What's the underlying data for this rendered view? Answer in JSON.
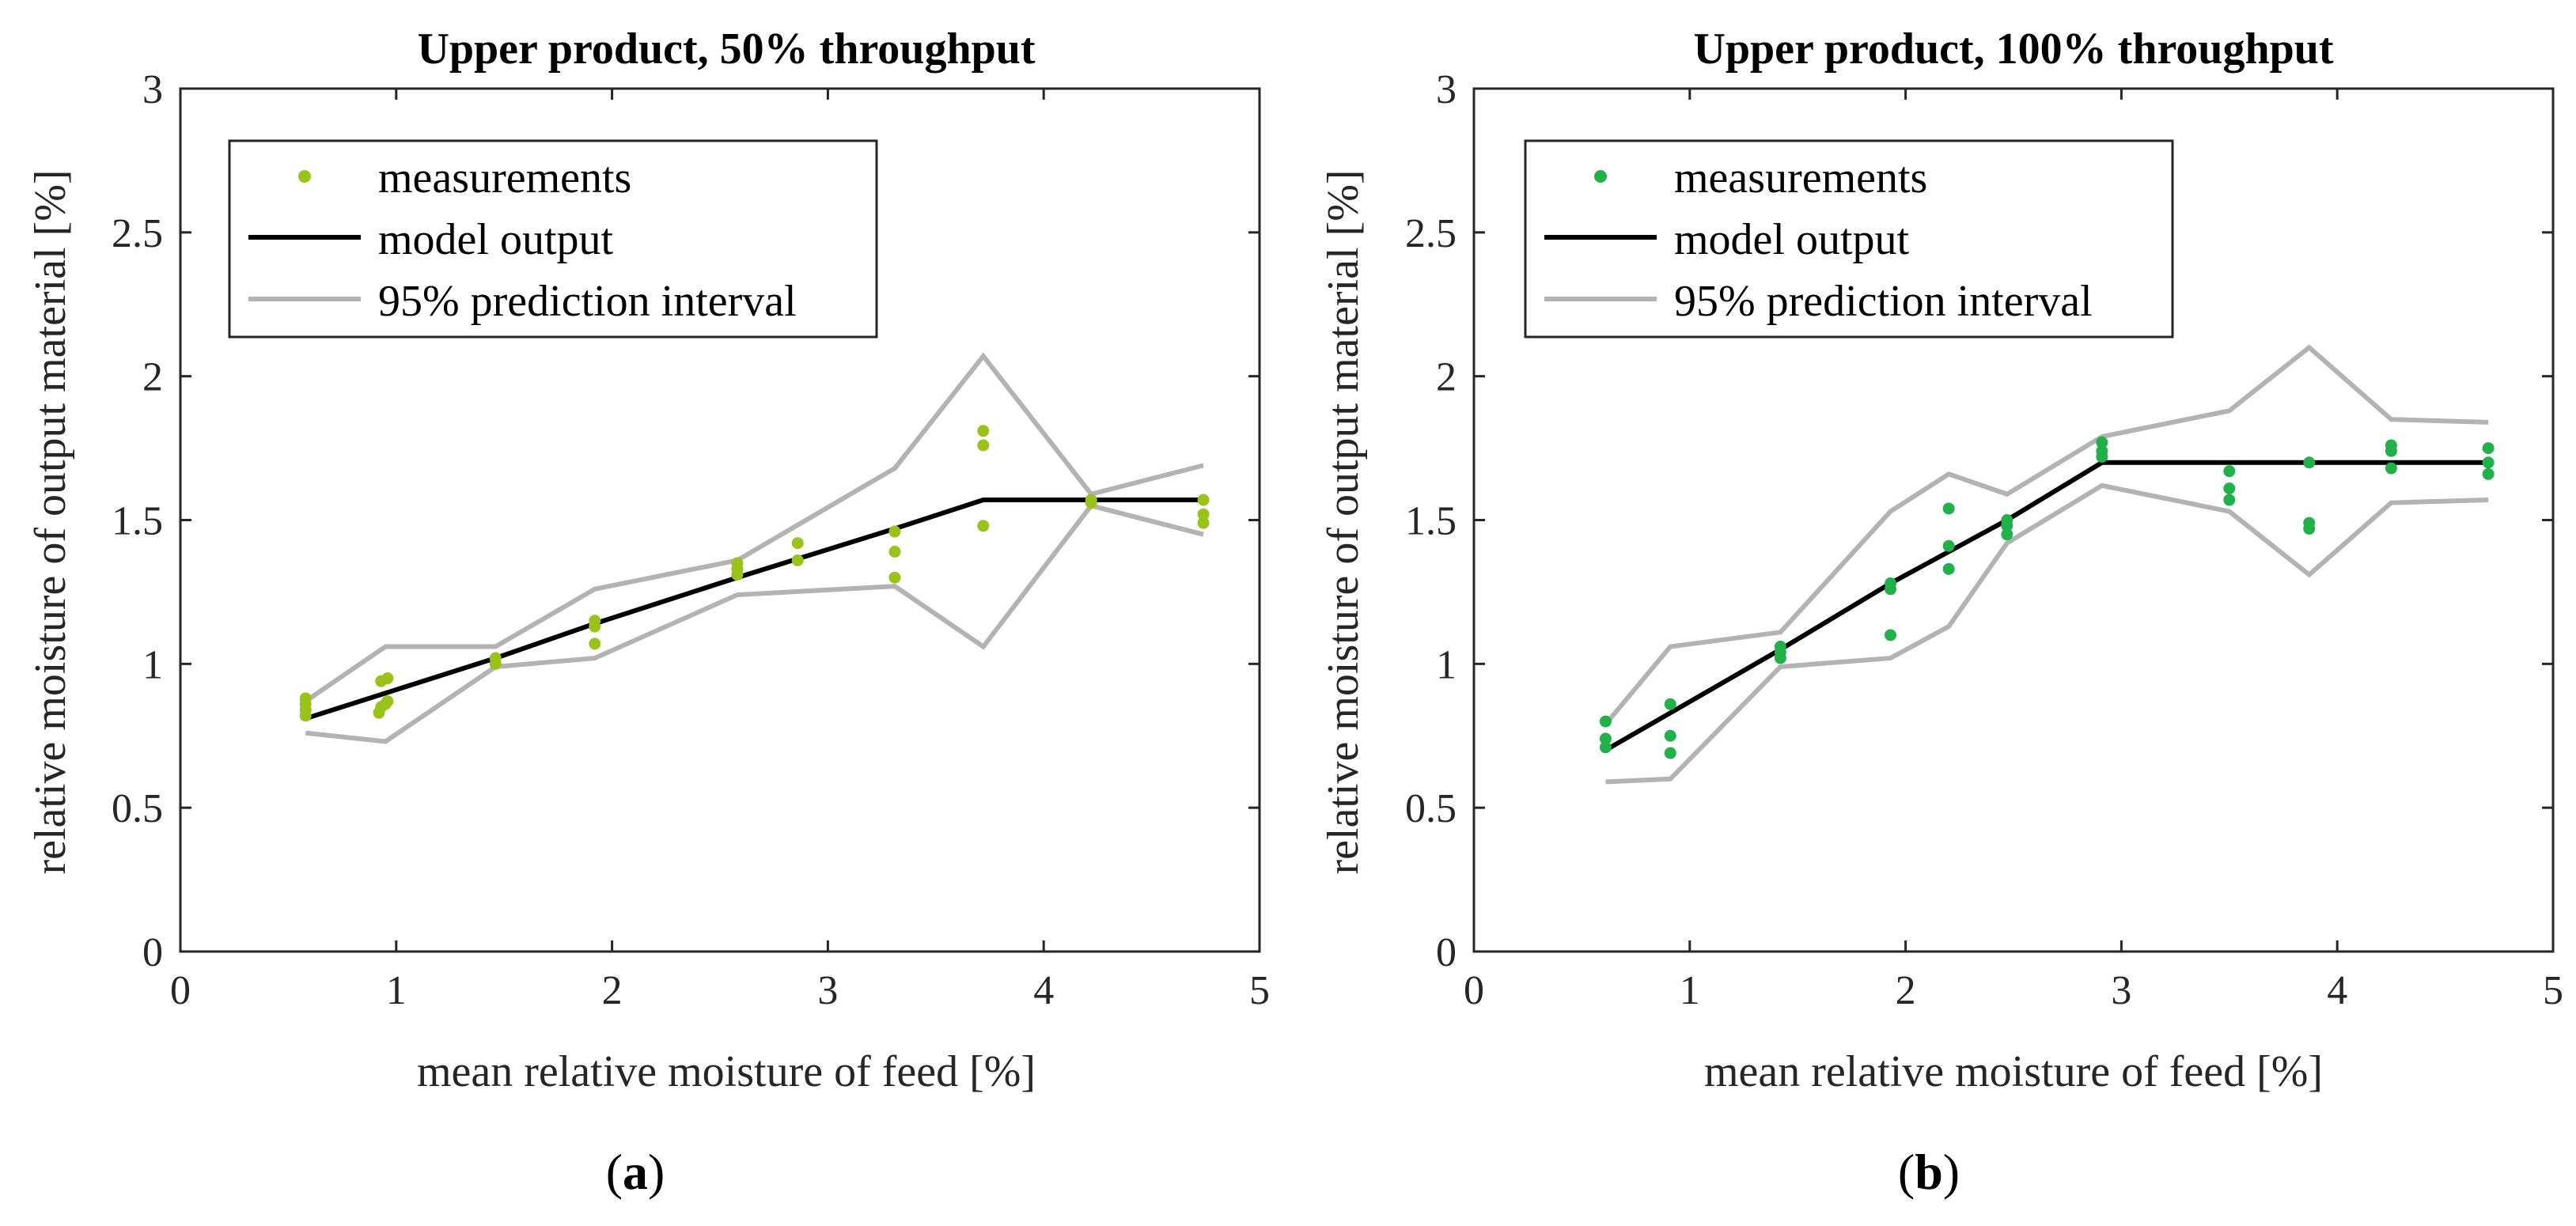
{
  "chart_data": [
    {
      "type": "line",
      "panel_label": "a",
      "title": "Upper product, 50% throughput",
      "xlabel": "mean relative moisture of feed [%]",
      "ylabel": "relative moisture of output material [%]",
      "xlim": [
        0,
        5
      ],
      "ylim": [
        0,
        3
      ],
      "xticks": [
        0,
        1,
        2,
        3,
        4,
        5
      ],
      "yticks": [
        0,
        0.5,
        1,
        1.5,
        2,
        2.5,
        3
      ],
      "grid": false,
      "legend_position": "top-left",
      "marker_color": "#99c31a",
      "series": [
        {
          "name": "measurements",
          "kind": "scatter",
          "color": "#99c31a",
          "points": [
            [
              0.58,
              0.82
            ],
            [
              0.58,
              0.84
            ],
            [
              0.58,
              0.86
            ],
            [
              0.58,
              0.88
            ],
            [
              0.92,
              0.83
            ],
            [
              0.93,
              0.85
            ],
            [
              0.95,
              0.86
            ],
            [
              0.96,
              0.87
            ],
            [
              0.93,
              0.94
            ],
            [
              0.96,
              0.95
            ],
            [
              1.46,
              1.0
            ],
            [
              1.46,
              1.02
            ],
            [
              1.92,
              1.07
            ],
            [
              1.92,
              1.13
            ],
            [
              1.92,
              1.15
            ],
            [
              2.58,
              1.31
            ],
            [
              2.58,
              1.33
            ],
            [
              2.58,
              1.35
            ],
            [
              2.86,
              1.36
            ],
            [
              2.86,
              1.42
            ],
            [
              3.31,
              1.3
            ],
            [
              3.31,
              1.39
            ],
            [
              3.31,
              1.46
            ],
            [
              3.72,
              1.48
            ],
            [
              3.72,
              1.76
            ],
            [
              3.72,
              1.81
            ],
            [
              4.22,
              1.56
            ],
            [
              4.22,
              1.57
            ],
            [
              4.74,
              1.49
            ],
            [
              4.74,
              1.52
            ],
            [
              4.74,
              1.57
            ]
          ]
        },
        {
          "name": "model output",
          "kind": "line",
          "color": "#000000",
          "points": [
            [
              0.58,
              0.81
            ],
            [
              1.46,
              1.02
            ],
            [
              1.92,
              1.14
            ],
            [
              2.58,
              1.3
            ],
            [
              3.31,
              1.47
            ],
            [
              3.72,
              1.57
            ],
            [
              4.22,
              1.57
            ],
            [
              4.74,
              1.57
            ]
          ]
        },
        {
          "name": "95% prediction interval",
          "kind": "line",
          "color": "#b3b3b3",
          "points": [
            [
              0.58,
              0.87
            ],
            [
              0.95,
              1.06
            ],
            [
              1.46,
              1.06
            ],
            [
              1.92,
              1.26
            ],
            [
              2.58,
              1.36
            ],
            [
              3.31,
              1.68
            ],
            [
              3.72,
              2.07
            ],
            [
              4.22,
              1.59
            ],
            [
              4.74,
              1.69
            ]
          ]
        },
        {
          "name": "95% prediction interval (lower)",
          "kind": "line",
          "color": "#b3b3b3",
          "in_legend": false,
          "points": [
            [
              0.58,
              0.76
            ],
            [
              0.95,
              0.73
            ],
            [
              1.46,
              0.99
            ],
            [
              1.92,
              1.02
            ],
            [
              2.58,
              1.24
            ],
            [
              3.31,
              1.27
            ],
            [
              3.72,
              1.06
            ],
            [
              4.22,
              1.55
            ],
            [
              4.74,
              1.45
            ]
          ]
        }
      ]
    },
    {
      "type": "line",
      "panel_label": "b",
      "title": "Upper product, 100% throughput",
      "xlabel": "mean relative moisture of feed [%]",
      "ylabel": "relative moisture of output material [%]",
      "xlim": [
        0,
        5
      ],
      "ylim": [
        0,
        3
      ],
      "xticks": [
        0,
        1,
        2,
        3,
        4,
        5
      ],
      "yticks": [
        0,
        0.5,
        1,
        1.5,
        2,
        2.5,
        3
      ],
      "grid": false,
      "legend_position": "top-left",
      "marker_color": "#22b04b",
      "series": [
        {
          "name": "measurements",
          "kind": "scatter",
          "color": "#22b04b",
          "points": [
            [
              0.61,
              0.71
            ],
            [
              0.61,
              0.74
            ],
            [
              0.61,
              0.8
            ],
            [
              0.91,
              0.69
            ],
            [
              0.91,
              0.75
            ],
            [
              0.91,
              0.86
            ],
            [
              1.42,
              1.02
            ],
            [
              1.42,
              1.04
            ],
            [
              1.42,
              1.06
            ],
            [
              1.93,
              1.1
            ],
            [
              1.93,
              1.26
            ],
            [
              1.93,
              1.28
            ],
            [
              2.2,
              1.33
            ],
            [
              2.2,
              1.41
            ],
            [
              2.2,
              1.54
            ],
            [
              2.47,
              1.45
            ],
            [
              2.47,
              1.48
            ],
            [
              2.47,
              1.5
            ],
            [
              2.91,
              1.72
            ],
            [
              2.91,
              1.74
            ],
            [
              2.91,
              1.77
            ],
            [
              3.5,
              1.57
            ],
            [
              3.5,
              1.61
            ],
            [
              3.5,
              1.67
            ],
            [
              3.87,
              1.47
            ],
            [
              3.87,
              1.49
            ],
            [
              3.87,
              1.7
            ],
            [
              4.25,
              1.68
            ],
            [
              4.25,
              1.74
            ],
            [
              4.25,
              1.76
            ],
            [
              4.7,
              1.66
            ],
            [
              4.7,
              1.7
            ],
            [
              4.7,
              1.75
            ]
          ]
        },
        {
          "name": "model output",
          "kind": "line",
          "color": "#000000",
          "points": [
            [
              0.61,
              0.7
            ],
            [
              1.42,
              1.05
            ],
            [
              1.93,
              1.28
            ],
            [
              2.47,
              1.5
            ],
            [
              2.91,
              1.7
            ],
            [
              3.5,
              1.7
            ],
            [
              4.25,
              1.7
            ],
            [
              4.7,
              1.7
            ]
          ]
        },
        {
          "name": "95% prediction interval",
          "kind": "line",
          "color": "#b3b3b3",
          "points": [
            [
              0.61,
              0.79
            ],
            [
              0.91,
              1.06
            ],
            [
              1.42,
              1.11
            ],
            [
              1.93,
              1.53
            ],
            [
              2.2,
              1.66
            ],
            [
              2.47,
              1.59
            ],
            [
              2.91,
              1.79
            ],
            [
              3.5,
              1.88
            ],
            [
              3.87,
              2.1
            ],
            [
              4.25,
              1.85
            ],
            [
              4.7,
              1.84
            ]
          ]
        },
        {
          "name": "95% prediction interval (lower)",
          "kind": "line",
          "color": "#b3b3b3",
          "in_legend": false,
          "points": [
            [
              0.61,
              0.59
            ],
            [
              0.91,
              0.6
            ],
            [
              1.42,
              0.99
            ],
            [
              1.93,
              1.02
            ],
            [
              2.2,
              1.13
            ],
            [
              2.47,
              1.42
            ],
            [
              2.91,
              1.62
            ],
            [
              3.5,
              1.53
            ],
            [
              3.87,
              1.31
            ],
            [
              4.25,
              1.56
            ],
            [
              4.7,
              1.57
            ]
          ]
        }
      ]
    }
  ]
}
